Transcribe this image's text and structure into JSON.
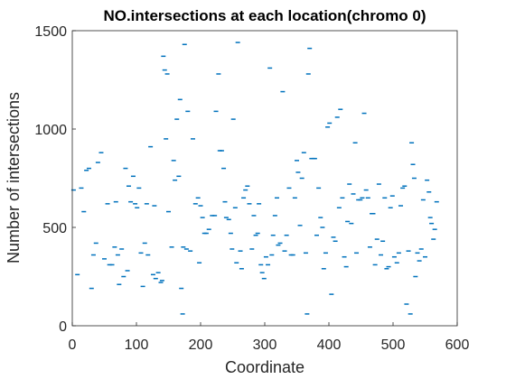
{
  "chart_data": {
    "type": "scatter",
    "title": "NO.intersections at each location(chromo 0)",
    "xlabel": "Coordinate",
    "ylabel": "Number of intersections",
    "xlim": [
      0,
      600
    ],
    "ylim": [
      0,
      1500
    ],
    "xticks": [
      0,
      100,
      200,
      300,
      400,
      500,
      600
    ],
    "yticks": [
      0,
      500,
      1000,
      1500
    ],
    "grid": false,
    "box": true,
    "marker": "short horizontal dash",
    "color": "#0072BD",
    "series": [
      {
        "points": [
          [
            2,
            690
          ],
          [
            8,
            260
          ],
          [
            14,
            700
          ],
          [
            18,
            580
          ],
          [
            22,
            790
          ],
          [
            26,
            800
          ],
          [
            30,
            190
          ],
          [
            33,
            360
          ],
          [
            37,
            420
          ],
          [
            40,
            830
          ],
          [
            45,
            880
          ],
          [
            50,
            340
          ],
          [
            55,
            620
          ],
          [
            58,
            310
          ],
          [
            62,
            310
          ],
          [
            66,
            400
          ],
          [
            68,
            630
          ],
          [
            71,
            360
          ],
          [
            73,
            210
          ],
          [
            77,
            390
          ],
          [
            80,
            250
          ],
          [
            83,
            800
          ],
          [
            86,
            280
          ],
          [
            88,
            710
          ],
          [
            91,
            630
          ],
          [
            95,
            760
          ],
          [
            98,
            620
          ],
          [
            101,
            600
          ],
          [
            104,
            700
          ],
          [
            107,
            370
          ],
          [
            110,
            200
          ],
          [
            113,
            420
          ],
          [
            116,
            620
          ],
          [
            118,
            360
          ],
          [
            122,
            910
          ],
          [
            126,
            260
          ],
          [
            128,
            610
          ],
          [
            130,
            240
          ],
          [
            134,
            270
          ],
          [
            138,
            220
          ],
          [
            140,
            230
          ],
          [
            142,
            1370
          ],
          [
            144,
            1300
          ],
          [
            146,
            950
          ],
          [
            148,
            1280
          ],
          [
            150,
            580
          ],
          [
            155,
            400
          ],
          [
            158,
            840
          ],
          [
            160,
            740
          ],
          [
            163,
            1050
          ],
          [
            166,
            760
          ],
          [
            168,
            1150
          ],
          [
            170,
            190
          ],
          [
            172,
            60
          ],
          [
            173,
            400
          ],
          [
            175,
            1430
          ],
          [
            178,
            390
          ],
          [
            180,
            1090
          ],
          [
            184,
            380
          ],
          [
            188,
            950
          ],
          [
            192,
            620
          ],
          [
            196,
            650
          ],
          [
            198,
            320
          ],
          [
            200,
            610
          ],
          [
            203,
            550
          ],
          [
            206,
            470
          ],
          [
            209,
            470
          ],
          [
            213,
            490
          ],
          [
            218,
            560
          ],
          [
            222,
            560
          ],
          [
            224,
            1090
          ],
          [
            228,
            1280
          ],
          [
            230,
            890
          ],
          [
            233,
            890
          ],
          [
            236,
            800
          ],
          [
            238,
            630
          ],
          [
            240,
            550
          ],
          [
            244,
            540
          ],
          [
            247,
            470
          ],
          [
            249,
            390
          ],
          [
            251,
            1050
          ],
          [
            254,
            600
          ],
          [
            256,
            320
          ],
          [
            258,
            1440
          ],
          [
            262,
            380
          ],
          [
            264,
            290
          ],
          [
            267,
            650
          ],
          [
            270,
            690
          ],
          [
            273,
            710
          ],
          [
            276,
            620
          ],
          [
            280,
            390
          ],
          [
            283,
            560
          ],
          [
            286,
            460
          ],
          [
            289,
            470
          ],
          [
            291,
            620
          ],
          [
            294,
            310
          ],
          [
            296,
            270
          ],
          [
            299,
            240
          ],
          [
            302,
            350
          ],
          [
            305,
            310
          ],
          [
            308,
            1310
          ],
          [
            311,
            360
          ],
          [
            313,
            460
          ],
          [
            316,
            560
          ],
          [
            319,
            650
          ],
          [
            321,
            410
          ],
          [
            324,
            420
          ],
          [
            328,
            1190
          ],
          [
            331,
            380
          ],
          [
            334,
            460
          ],
          [
            338,
            700
          ],
          [
            341,
            360
          ],
          [
            344,
            360
          ],
          [
            347,
            650
          ],
          [
            350,
            840
          ],
          [
            352,
            780
          ],
          [
            355,
            510
          ],
          [
            358,
            750
          ],
          [
            361,
            880
          ],
          [
            364,
            370
          ],
          [
            366,
            60
          ],
          [
            368,
            1280
          ],
          [
            370,
            1410
          ],
          [
            373,
            850
          ],
          [
            376,
            850
          ],
          [
            378,
            850
          ],
          [
            381,
            460
          ],
          [
            384,
            700
          ],
          [
            387,
            550
          ],
          [
            390,
            500
          ],
          [
            392,
            290
          ],
          [
            395,
            370
          ],
          [
            398,
            1010
          ],
          [
            401,
            1030
          ],
          [
            404,
            160
          ],
          [
            407,
            450
          ],
          [
            410,
            430
          ],
          [
            413,
            1060
          ],
          [
            416,
            600
          ],
          [
            418,
            1100
          ],
          [
            421,
            650
          ],
          [
            424,
            350
          ],
          [
            427,
            300
          ],
          [
            429,
            530
          ],
          [
            432,
            720
          ],
          [
            435,
            520
          ],
          [
            438,
            670
          ],
          [
            441,
            930
          ],
          [
            443,
            370
          ],
          [
            446,
            640
          ],
          [
            449,
            640
          ],
          [
            452,
            650
          ],
          [
            455,
            1080
          ],
          [
            458,
            690
          ],
          [
            461,
            650
          ],
          [
            464,
            400
          ],
          [
            467,
            570
          ],
          [
            469,
            570
          ],
          [
            472,
            310
          ],
          [
            475,
            440
          ],
          [
            478,
            720
          ],
          [
            481,
            360
          ],
          [
            484,
            430
          ],
          [
            487,
            650
          ],
          [
            490,
            290
          ],
          [
            493,
            300
          ],
          [
            496,
            600
          ],
          [
            499,
            660
          ],
          [
            502,
            350
          ],
          [
            506,
            320
          ],
          [
            509,
            370
          ],
          [
            512,
            610
          ],
          [
            515,
            700
          ],
          [
            518,
            710
          ],
          [
            521,
            110
          ],
          [
            524,
            380
          ],
          [
            527,
            60
          ],
          [
            529,
            930
          ],
          [
            531,
            820
          ],
          [
            533,
            750
          ],
          [
            535,
            250
          ],
          [
            538,
            370
          ],
          [
            541,
            330
          ],
          [
            544,
            390
          ],
          [
            547,
            640
          ],
          [
            550,
            350
          ],
          [
            553,
            740
          ],
          [
            556,
            680
          ],
          [
            558,
            550
          ],
          [
            560,
            520
          ],
          [
            563,
            440
          ],
          [
            565,
            490
          ],
          [
            568,
            630
          ]
        ]
      }
    ]
  }
}
